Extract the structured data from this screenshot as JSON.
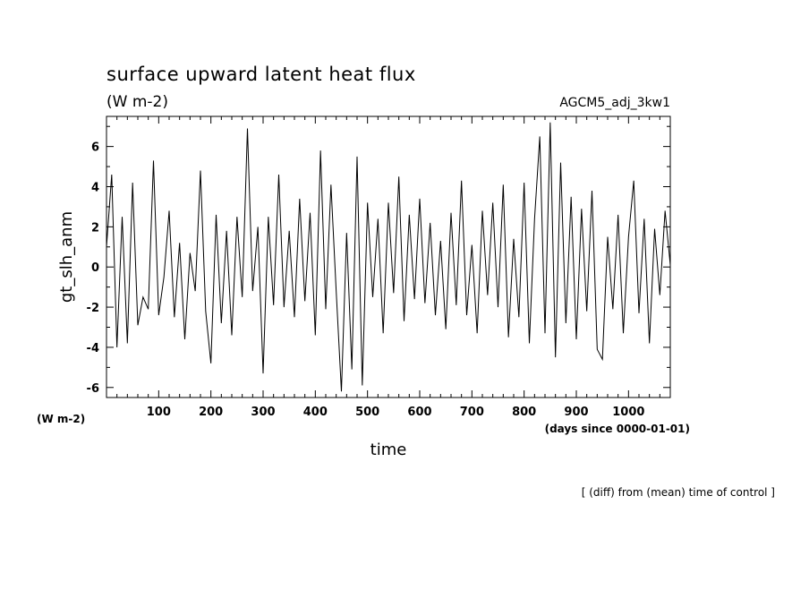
{
  "chart_data": {
    "type": "line",
    "title": "surface upward latent heat flux",
    "subtitle": "(W m-2)",
    "dataset_label": "AGCM5_adj_3kw1",
    "xlabel": "time",
    "x_unit_label": "(days since 0000-01-01)",
    "ylabel": "gt_slh_anm",
    "y_unit_label": "(W m-2)",
    "footnote": "[ (diff) from (mean) time of control ]",
    "xlim": [
      0,
      1080
    ],
    "ylim": [
      -6.5,
      7.5
    ],
    "x_ticks": [
      100,
      200,
      300,
      400,
      500,
      600,
      700,
      800,
      900,
      1000
    ],
    "x_tick_labels": [
      "100",
      "200",
      "300",
      "400",
      "500",
      "600",
      "700",
      "800",
      "900",
      "1000"
    ],
    "y_ticks": [
      -6,
      -4,
      -2,
      0,
      2,
      4,
      6
    ],
    "y_tick_labels": [
      "-6",
      "-4",
      "-2",
      "0",
      "2",
      "4",
      "6"
    ],
    "grid": false,
    "line_color": "#000000",
    "x": [
      0,
      10,
      20,
      30,
      40,
      50,
      60,
      70,
      80,
      90,
      100,
      110,
      120,
      130,
      140,
      150,
      160,
      170,
      180,
      190,
      200,
      210,
      220,
      230,
      240,
      250,
      260,
      270,
      280,
      290,
      300,
      310,
      320,
      330,
      340,
      350,
      360,
      370,
      380,
      390,
      400,
      410,
      420,
      430,
      440,
      450,
      460,
      470,
      480,
      490,
      500,
      510,
      520,
      530,
      540,
      550,
      560,
      570,
      580,
      590,
      600,
      610,
      620,
      630,
      640,
      650,
      660,
      670,
      680,
      690,
      700,
      710,
      720,
      730,
      740,
      750,
      760,
      770,
      780,
      790,
      800,
      810,
      820,
      830,
      840,
      850,
      860,
      870,
      880,
      890,
      900,
      910,
      920,
      930,
      940,
      950,
      960,
      970,
      980,
      990,
      1000,
      1010,
      1020,
      1030,
      1040,
      1050,
      1060,
      1070,
      1080
    ],
    "values": [
      1.0,
      4.6,
      -4.0,
      2.5,
      -3.8,
      4.2,
      -2.9,
      -1.5,
      -2.1,
      5.3,
      -2.4,
      -0.5,
      2.8,
      -2.5,
      1.2,
      -3.6,
      0.7,
      -1.2,
      4.8,
      -2.2,
      -4.8,
      2.6,
      -2.8,
      1.8,
      -3.4,
      2.5,
      -1.5,
      6.9,
      -1.2,
      2.0,
      -5.3,
      2.5,
      -1.9,
      4.6,
      -2.0,
      1.8,
      -2.5,
      3.4,
      -1.7,
      2.7,
      -3.4,
      5.8,
      -2.1,
      4.1,
      -1.2,
      -6.2,
      1.7,
      -5.1,
      5.5,
      -5.9,
      3.2,
      -1.5,
      2.4,
      -3.3,
      3.2,
      -1.3,
      4.5,
      -2.7,
      2.6,
      -1.6,
      3.4,
      -1.8,
      2.2,
      -2.4,
      1.3,
      -3.1,
      2.7,
      -1.9,
      4.3,
      -2.4,
      1.1,
      -3.3,
      2.8,
      -1.4,
      3.2,
      -2.0,
      4.1,
      -3.5,
      1.4,
      -2.5,
      4.2,
      -3.8,
      2.4,
      6.5,
      -3.3,
      7.2,
      -4.5,
      5.2,
      -2.8,
      3.5,
      -3.6,
      2.9,
      -2.2,
      3.8,
      -4.1,
      -4.6,
      1.5,
      -2.1,
      2.6,
      -3.3,
      1.5,
      4.3,
      -2.3,
      2.4,
      -3.8,
      1.9,
      -1.4,
      2.8,
      0.1
    ]
  }
}
